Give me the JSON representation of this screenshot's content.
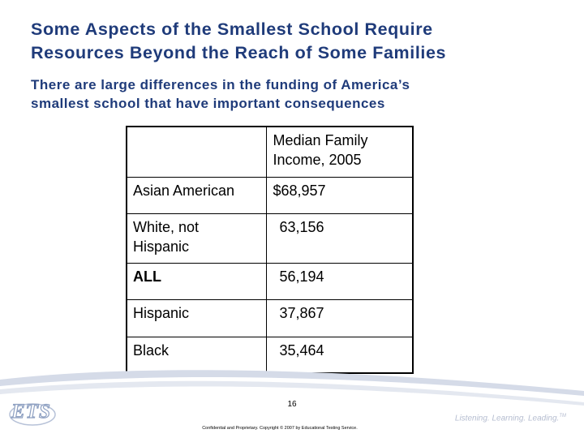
{
  "slide": {
    "title_lines": [
      "Some Aspects of the Smallest School Require",
      "Resources Beyond the Reach of Some Families"
    ],
    "subtitle_lines": [
      "There are large differences in the funding of America’s",
      "smallest school that have important consequences"
    ]
  },
  "table": {
    "header": {
      "col1": "",
      "col2_lines": [
        "Median Family",
        "Income, 2005"
      ]
    },
    "rows": [
      {
        "group_lines": [
          "Asian American"
        ],
        "income": "$68,957",
        "bold": false
      },
      {
        "group_lines": [
          "White, not",
          "Hispanic"
        ],
        "income": "63,156",
        "bold": false
      },
      {
        "group_lines": [
          "ALL"
        ],
        "income": "56,194",
        "bold": true
      },
      {
        "group_lines": [
          "Hispanic"
        ],
        "income": "37,867",
        "bold": false
      },
      {
        "group_lines": [
          "Black"
        ],
        "income": "35,464",
        "bold": false
      }
    ]
  },
  "footer": {
    "page_number": "16",
    "confidential": "Confidential and Proprietary. Copyright © 2007 by Educational Testing Service.",
    "logo_text": "ETS",
    "tagline": "Listening. Learning. Leading.",
    "tagline_mark": "TM"
  },
  "colors": {
    "title": "#1f3b7a",
    "swoosh": "#c9d0e0",
    "logo_outline": "#8fa1c2"
  }
}
